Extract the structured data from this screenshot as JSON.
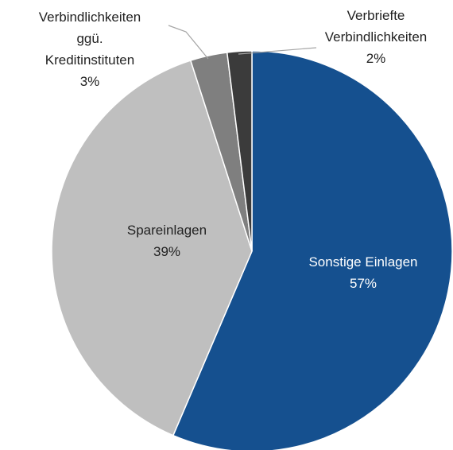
{
  "chart_data": {
    "type": "pie",
    "categories": [
      "Sonstige Einlagen",
      "Spareinlagen",
      "Verbindlichkeiten ggü. Kreditinstituten",
      "Verbriefte Verbindlichkeiten"
    ],
    "values": [
      57,
      39,
      3,
      2
    ],
    "value_labels": [
      "57%",
      "39%",
      "3%",
      "2%"
    ],
    "colors": [
      "#15508f",
      "#bfbfbf",
      "#7f7f7f",
      "#3b3b3b"
    ]
  }
}
